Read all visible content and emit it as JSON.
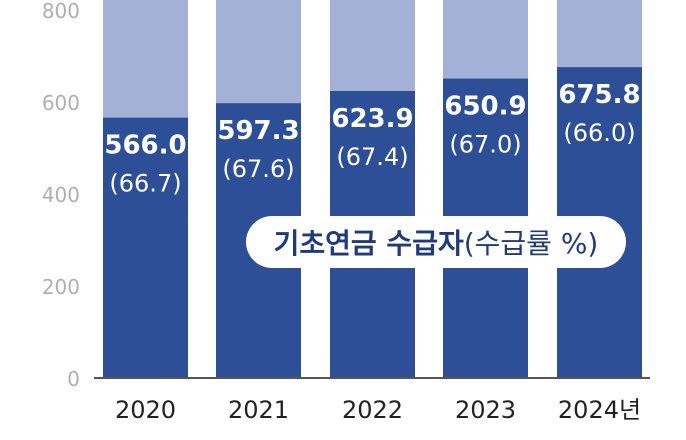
{
  "chart_data": {
    "type": "bar",
    "categories": [
      "2020",
      "2021",
      "2022",
      "2023",
      "2024년"
    ],
    "series": [
      {
        "name": "기초연금 수급자",
        "values": [
          566.0,
          597.3,
          623.9,
          650.9,
          675.8
        ]
      }
    ],
    "rates": [
      "(66.7)",
      "(67.6)",
      "(67.4)",
      "(67.0)",
      "(66.0)"
    ],
    "value_labels": [
      "566.0",
      "597.3",
      "623.9",
      "650.9",
      "675.8"
    ],
    "yticks": [
      "0",
      "200",
      "400",
      "600",
      "800"
    ],
    "ylim": [
      0,
      800
    ],
    "legend": {
      "main": "기초연금 수급자",
      "sub": "(수급률 %)"
    },
    "colors": {
      "bar": "#2c4f97",
      "background_bar": "#a3b1d6",
      "axis_text": "#b0b0b0",
      "category_text": "#222222"
    }
  }
}
